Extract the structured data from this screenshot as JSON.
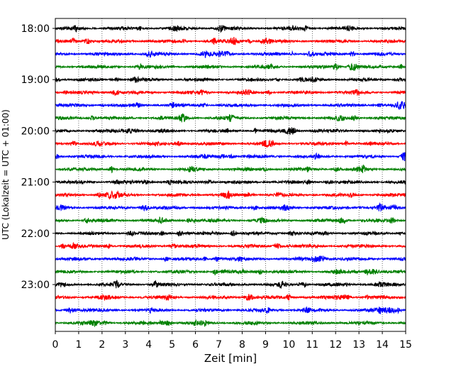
{
  "chart_data": {
    "type": "line",
    "title": "",
    "xlabel": "Zeit  [min]",
    "ylabel": "UTC (Lokalzeit = UTC + 01:00)",
    "xlim": [
      0,
      15
    ],
    "x_ticks": [
      "0",
      "1",
      "2",
      "3",
      "4",
      "5",
      "6",
      "7",
      "8",
      "9",
      "10",
      "11",
      "12",
      "13",
      "14",
      "15"
    ],
    "y_ticks": [
      {
        "label": "18:00",
        "trace": 0
      },
      {
        "label": "19:00",
        "trace": 4
      },
      {
        "label": "20:00",
        "trace": 8
      },
      {
        "label": "21:00",
        "trace": 12
      },
      {
        "label": "22:00",
        "trace": 16
      },
      {
        "label": "23:00",
        "trace": 20
      }
    ],
    "grid": "vertical-dotted",
    "colors": [
      "#000000",
      "#ff0000",
      "#0000ff",
      "#008000"
    ],
    "series": [
      {
        "start": "18:00",
        "color": "#000000"
      },
      {
        "start": "18:15",
        "color": "#ff0000"
      },
      {
        "start": "18:30",
        "color": "#0000ff"
      },
      {
        "start": "18:45",
        "color": "#008000"
      },
      {
        "start": "19:00",
        "color": "#000000"
      },
      {
        "start": "19:15",
        "color": "#ff0000"
      },
      {
        "start": "19:30",
        "color": "#0000ff"
      },
      {
        "start": "19:45",
        "color": "#008000"
      },
      {
        "start": "20:00",
        "color": "#000000"
      },
      {
        "start": "20:15",
        "color": "#ff0000"
      },
      {
        "start": "20:30",
        "color": "#0000ff"
      },
      {
        "start": "20:45",
        "color": "#008000"
      },
      {
        "start": "21:00",
        "color": "#000000"
      },
      {
        "start": "21:15",
        "color": "#ff0000"
      },
      {
        "start": "21:30",
        "color": "#0000ff"
      },
      {
        "start": "21:45",
        "color": "#008000"
      },
      {
        "start": "22:00",
        "color": "#000000"
      },
      {
        "start": "22:15",
        "color": "#ff0000"
      },
      {
        "start": "22:30",
        "color": "#0000ff"
      },
      {
        "start": "22:45",
        "color": "#008000"
      },
      {
        "start": "23:00",
        "color": "#000000"
      },
      {
        "start": "23:15",
        "color": "#ff0000"
      },
      {
        "start": "23:30",
        "color": "#0000ff"
      },
      {
        "start": "23:45",
        "color": "#008000"
      }
    ]
  }
}
